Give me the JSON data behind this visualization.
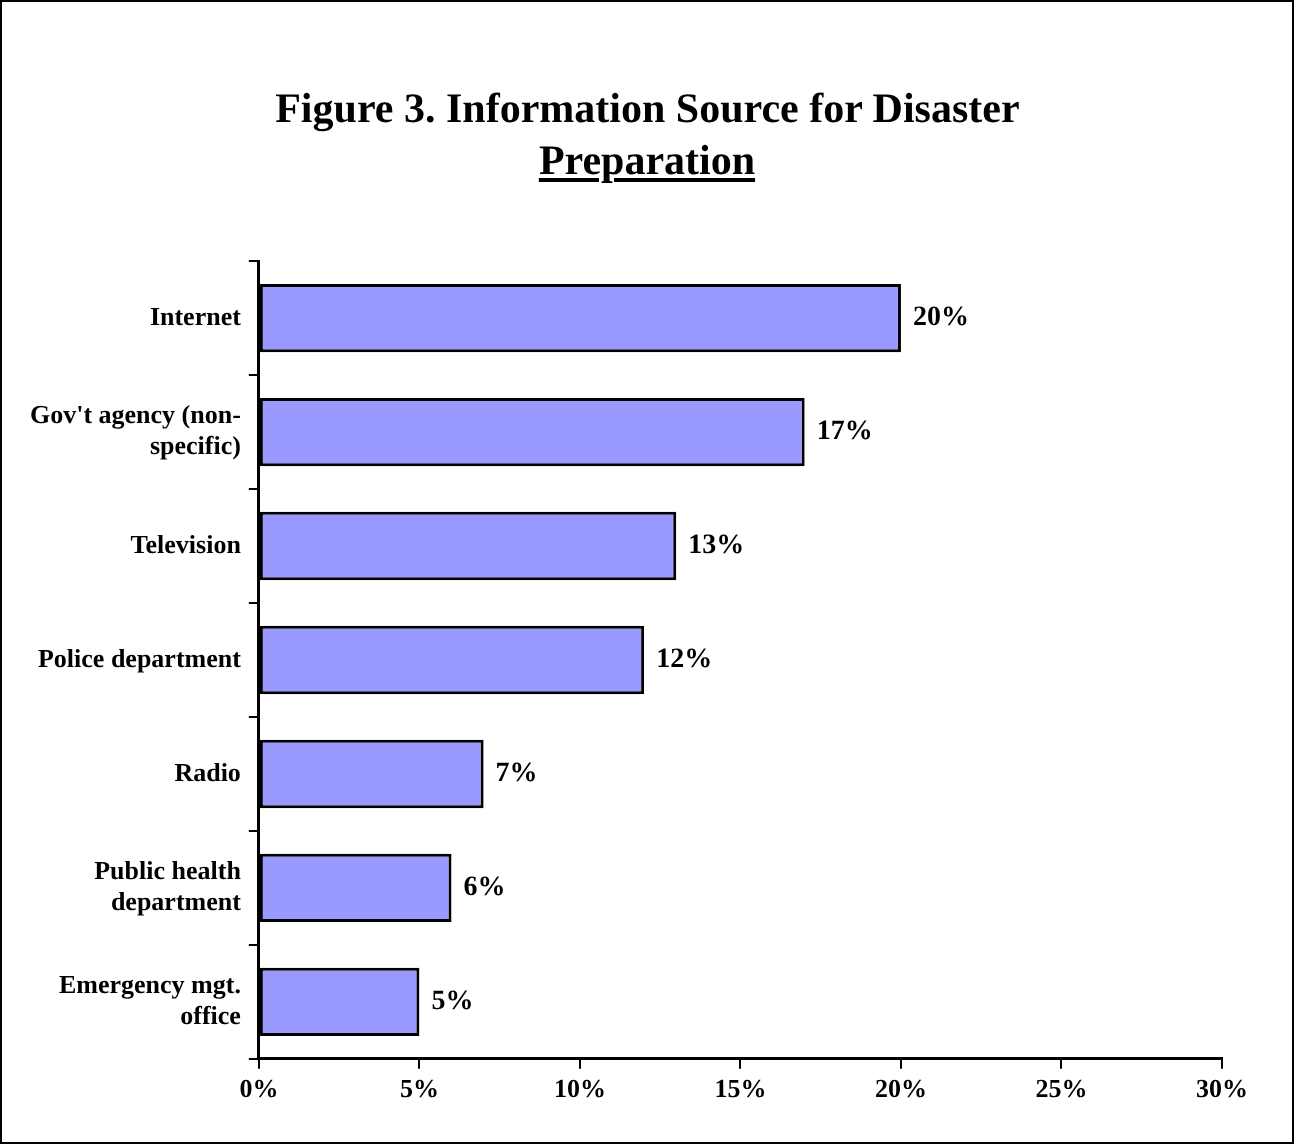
{
  "chart_data": {
    "type": "bar",
    "orientation": "horizontal",
    "title": "Figure 3. Information Source for Disaster Preparation",
    "categories": [
      "Internet",
      "Gov't agency (non-specific)",
      "Television",
      "Police department",
      "Radio",
      "Public health department",
      "Emergency mgt. office"
    ],
    "values": [
      20,
      17,
      13,
      12,
      7,
      6,
      5
    ],
    "value_labels": [
      "20%",
      "17%",
      "13%",
      "12%",
      "7%",
      "6%",
      "5%"
    ],
    "color": "#9999ff",
    "xlim": [
      0,
      30
    ],
    "xticks": [
      {
        "value": 0,
        "label": "0%"
      },
      {
        "value": 5,
        "label": "5%"
      },
      {
        "value": 10,
        "label": "10%"
      },
      {
        "value": 15,
        "label": "15%"
      },
      {
        "value": 20,
        "label": "20%"
      },
      {
        "value": 25,
        "label": "25%"
      },
      {
        "value": 30,
        "label": "30%"
      }
    ],
    "grid": false,
    "legend": false
  }
}
